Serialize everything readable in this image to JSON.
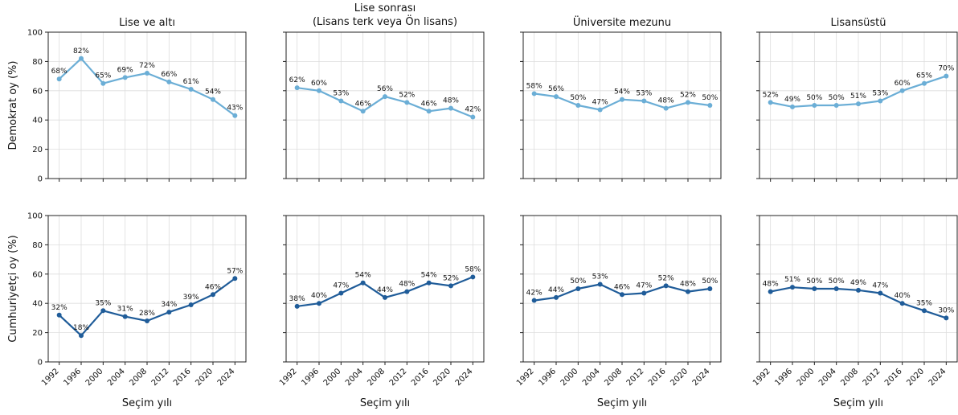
{
  "xlabel": "Seçim yılı",
  "colors": {
    "demokrat": "#6baed6",
    "cumhuriyetci": "#1f5c99"
  },
  "chart_data": {
    "type": "line",
    "x": [
      1992,
      1996,
      2000,
      2004,
      2008,
      2012,
      2016,
      2020,
      2024
    ],
    "ylim": [
      0,
      100
    ],
    "yticks": [
      0,
      20,
      40,
      60,
      80,
      100
    ],
    "grid": true,
    "rows": [
      {
        "ylabel": "Demokrat oy (%)",
        "color_key": "demokrat"
      },
      {
        "ylabel": "Cumhuriyetçi oy (%)",
        "color_key": "cumhuriyetci"
      }
    ],
    "panels": [
      {
        "title": "Lise ve altı",
        "demokrat": [
          68,
          82,
          65,
          69,
          72,
          66,
          61,
          54,
          43
        ],
        "cumhuriyetci": [
          32,
          18,
          35,
          31,
          28,
          34,
          39,
          46,
          57
        ]
      },
      {
        "title": "Lise sonrası\n(Lisans terk veya Ön lisans)",
        "demokrat": [
          62,
          60,
          53,
          46,
          56,
          52,
          46,
          48,
          42
        ],
        "cumhuriyetci": [
          38,
          40,
          47,
          54,
          44,
          48,
          54,
          52,
          58
        ]
      },
      {
        "title": "Üniversite mezunu",
        "demokrat": [
          58,
          56,
          50,
          47,
          54,
          53,
          48,
          52,
          50
        ],
        "cumhuriyetci": [
          42,
          44,
          50,
          53,
          46,
          47,
          52,
          48,
          50
        ]
      },
      {
        "title": "Lisansüstü",
        "demokrat": [
          52,
          49,
          50,
          50,
          51,
          53,
          60,
          65,
          70
        ],
        "cumhuriyetci": [
          48,
          51,
          50,
          50,
          49,
          47,
          40,
          35,
          30
        ]
      }
    ]
  }
}
